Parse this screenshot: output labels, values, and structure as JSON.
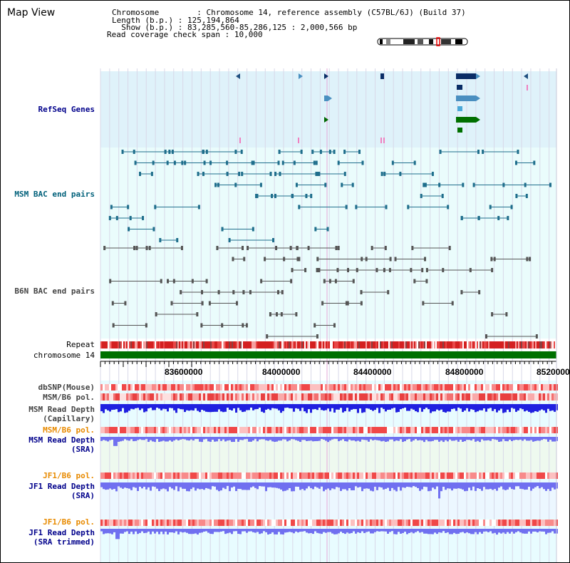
{
  "title": "Map View",
  "header": {
    "chromosome_label": "Chromosome",
    "chromosome_value": "Chromosome 14, reference assembly (C57BL/6J) (Build 37)",
    "length_label": "Length (b.p.)",
    "length_value": "125,194,864",
    "show_label": "Show (b.p.)",
    "show_value": "83,285,560-85,286,125 : 2,000,566 bp",
    "coverage_label": "Read coverage check span",
    "coverage_value": "10,000"
  },
  "tracks": {
    "refseq": "RefSeq Genes",
    "msm_bac": "MSM BAC end pairs",
    "b6n_bac": "B6N BAC end pairs",
    "repeat": "Repeat",
    "chromosome": "chromosome 14",
    "dbsnp": "dbSNP(Mouse)",
    "msm_b6_pol_1": "MSM/B6 pol.",
    "msm_depth_cap_1": "MSM Read Depth",
    "msm_depth_cap_2": "(Capillary)",
    "msm_b6_pol_2": "MSM/B6 pol.",
    "msm_depth_sra_1": "MSM Read Depth",
    "msm_depth_sra_2": "(SRA)",
    "jf1_b6_pol_1": "JF1/B6 pol.",
    "jf1_depth_sra_1": "JF1 Read Depth",
    "jf1_depth_sra_2": "(SRA)",
    "jf1_b6_pol_2": "JF1/B6 pol.",
    "jf1_depth_trim_1": "JF1 Read Depth",
    "jf1_depth_trim_2": "(SRA trimmed)"
  },
  "axis": {
    "ticks": [
      "83600000",
      "84000000",
      "84400000",
      "84800000",
      "85200000"
    ]
  },
  "colors": {
    "refseq_bg": "#dff2fa",
    "bac_bg": "#eafcfc",
    "msm_bac": "#1f6e8c",
    "b6n_bac": "#555555",
    "chromosome": "#007000",
    "repeat": "#d42020",
    "depth_blue": "#2020e0",
    "depth_light": "#7070f0"
  }
}
